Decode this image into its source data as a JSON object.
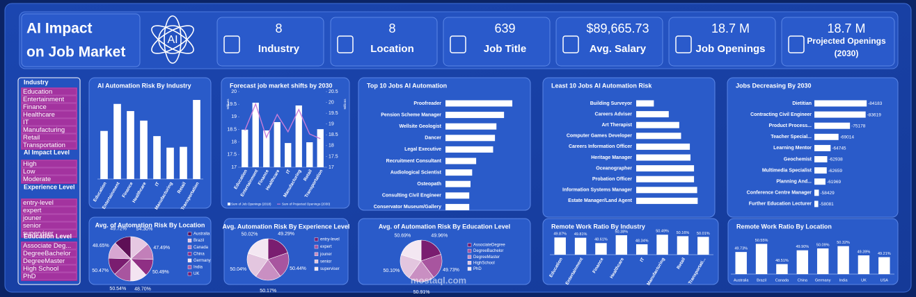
{
  "header": {
    "title_line1": "AI Impact",
    "title_line2": "on Job Market",
    "icon_text": "AI"
  },
  "kpis": [
    {
      "value": "8",
      "label": "Industry"
    },
    {
      "value": "8",
      "label": "Location"
    },
    {
      "value": "639",
      "label": "Job Title"
    },
    {
      "value": "$89,665.73",
      "label": "Avg. Salary"
    },
    {
      "value": "18.7 M",
      "label": "Job Openings"
    },
    {
      "value": "18.7 M",
      "label": "Projected Openings",
      "sublabel": "(2030)"
    }
  ],
  "slicers": [
    {
      "title": "Industry",
      "items": [
        "Education",
        "Entertainment",
        "Finance",
        "Healthcare",
        "IT",
        "Manufacturing",
        "Retail",
        "Transportation"
      ]
    },
    {
      "title": "AI Impact Level",
      "items": [
        "High",
        "Low",
        "Moderate"
      ]
    },
    {
      "title": "Experience Level",
      "items": [
        "entry-level",
        "expert",
        "jouner",
        "senior",
        "superviser"
      ]
    },
    {
      "title": "Education Level",
      "items": [
        "Associate Deg...",
        "DegreeBachelor",
        "DegreeMaster",
        "High School",
        "PhD"
      ]
    }
  ],
  "watermark": "mostaql.com",
  "chart_data": [
    {
      "type": "bar",
      "title": "AI Automation Risk By Industry",
      "categories": [
        "Education",
        "Entertainment",
        "Finance",
        "Healthcare",
        "IT",
        "Manufacturing",
        "Retail",
        "Transportation"
      ],
      "values": [
        50.01,
        50.69,
        50.51,
        50.27,
        49.88,
        49.59,
        49.61,
        50.79
      ],
      "value_labels": [
        "50.01%",
        "50.69%",
        "50.51%",
        "50.27%",
        "49.88%",
        "49.59%",
        "49.61%",
        "50.79%"
      ],
      "color": "#ffffff",
      "ylim": [
        48.8,
        51.0
      ]
    },
    {
      "type": "combo",
      "title": "Forecast job market shifts by 2030",
      "categories": [
        "Education",
        "Entertainment",
        "Finance",
        "Healthcare",
        "IT",
        "Manufacturing",
        "Retail",
        "Transportation"
      ],
      "series": [
        {
          "name": "Sum of Job Openings (2018)",
          "color": "#ffffff",
          "values": [
            18.49,
            19.56,
            18.46,
            18.79,
            17.96,
            19.45,
            17.99,
            18.51
          ]
        },
        {
          "name": "Sum of Projected Openings (2030)",
          "color": "#c77dd8",
          "axis": "y2",
          "values": [
            18.7,
            19.93,
            18.38,
            19.44,
            18.64,
            19.67,
            18.54,
            18.32
          ]
        }
      ],
      "ylabel": "Millions",
      "y2label": "Millions",
      "ylim": [
        17,
        20
      ],
      "yticks": [
        17,
        17.5,
        18,
        18.5,
        19,
        19.5,
        20
      ],
      "y2lim": [
        17,
        20.5
      ],
      "y2ticks": [
        17,
        17.5,
        18,
        18.5,
        19,
        19.5,
        20,
        20.5
      ]
    },
    {
      "type": "bar",
      "orientation": "horizontal",
      "title": "Top 10 Jobs AI Automation",
      "categories": [
        "Proofreader",
        "Pension Scheme Manager",
        "Wellsite Geologist",
        "Dancer",
        "Legal Executive",
        "Recruitment Consultant",
        "Audiological Scientist",
        "Osteopath",
        "Consulting Civil Engineer",
        "Conservator Museum/Gallery"
      ],
      "values": [
        64.36,
        63.51,
        62.73,
        62.58,
        62.39,
        60.65,
        60.24,
        60.07,
        59.94,
        59.94
      ],
      "value_labels": [
        "64.36%",
        "63.51%",
        "62.73%",
        "62.58%",
        "62.39%",
        "60.65%",
        "60.24%",
        "60.07%",
        "59.94%",
        "59.94%"
      ],
      "color": "#ffffff",
      "xlim": [
        57.5,
        65
      ]
    },
    {
      "type": "bar",
      "orientation": "horizontal",
      "title": "Least 10 Jobs AI Automation Risk",
      "categories": [
        "Building Surveyor",
        "Careers Adviser",
        "Art Therapist",
        "Computer Games Developer",
        "Careers Information Officer",
        "Heritage Manager",
        "Oceanographer",
        "Probation Officer",
        "Information Systems Manager",
        "Estate Manager/Land Agent"
      ],
      "values": [
        37.85,
        38.99,
        39.79,
        39.93,
        40.6,
        40.65,
        40.92,
        40.92,
        41.16,
        41.2
      ],
      "value_labels": [
        "37.85%",
        "38.99%",
        "39.79%",
        "39.93%",
        "40.60%",
        "40.65%",
        "40.92%",
        "40.92%",
        "41.16%",
        "41.20%"
      ],
      "color": "#ffffff",
      "xlim": [
        36.5,
        41.5
      ]
    },
    {
      "type": "bar",
      "orientation": "horizontal",
      "title": "Jobs Decreasing By 2030",
      "categories": [
        "Dietitian",
        "Contracting Civil Engineer",
        "Product Process...",
        "Teacher Special...",
        "Learning Mentor",
        "Geochemist",
        "Multimedia Specialist",
        "Planning And...",
        "Conference Centre Manager",
        "Further Education Lecturer"
      ],
      "values": [
        -84183,
        -83619,
        -75178,
        -69014,
        -64745,
        -62938,
        -62659,
        -61969,
        -58429,
        -58081
      ],
      "color": "#ffffff",
      "xlim": [
        -56000,
        -86000
      ]
    },
    {
      "type": "pie",
      "title": "Avg. of Automation Risk By Location",
      "categories": [
        "Australia",
        "Brazil",
        "Canada",
        "China",
        "Germany",
        "India",
        "UK",
        null
      ],
      "values": [
        49.72,
        54.3,
        47.49,
        50.49,
        48.7,
        50.54,
        50.47,
        48.65
      ],
      "value_labels": [
        "49.72%",
        "54.30%",
        "47.49%",
        "50.49%",
        "48.70%",
        "50.54%",
        "50.47%",
        "48.65%"
      ],
      "colors": [
        "#5e0f56",
        "#e6c8e2",
        "#c27fb9",
        "#8f2f84",
        "#f3e4f1",
        "#a8559f",
        "#7a1d70",
        "#d7a6d1"
      ]
    },
    {
      "type": "pie",
      "title": "Avg. Automation Risk By Experience Level",
      "categories": [
        "entry-level",
        "expert",
        "jouner",
        "senior",
        "superviser"
      ],
      "values": [
        49.29,
        50.44,
        50.17,
        50.04,
        50.02
      ],
      "value_labels": [
        "49.29%",
        "50.44%",
        "50.17%",
        "50.04%",
        "50.02%"
      ],
      "colors": [
        "#7a1d70",
        "#a8559f",
        "#c98fc2",
        "#e3c6df",
        "#f3e7f2"
      ]
    },
    {
      "type": "pie",
      "title": "Avg. of Automation Risk By Education Level",
      "categories": [
        "AssociateDegree",
        "DegreeBachelor",
        "DegreeMaster",
        "HighSchool",
        "PhD"
      ],
      "values": [
        49.96,
        49.73,
        50.91,
        50.1,
        50.69
      ],
      "value_labels": [
        "49.96%",
        "49.73%",
        "50.91%",
        "50.10%",
        "50.69%"
      ],
      "colors": [
        "#7a1d70",
        "#a8559f",
        "#c98fc2",
        "#e3c6df",
        "#f3e7f2"
      ]
    },
    {
      "type": "bar",
      "title": "Remote Work Ratio By Industry",
      "categories": [
        "Education",
        "Entertainment",
        "Finance",
        "Healthcare",
        "IT",
        "Manufacturing",
        "Retail",
        "Transportati..."
      ],
      "values": [
        49.87,
        49.81,
        48.61,
        50.38,
        48.34,
        50.49,
        50.16,
        50.01
      ],
      "value_labels": [
        "49.87%",
        "49.81%",
        "48.61%",
        "50.38%",
        "48.34%",
        "50.49%",
        "50.16%",
        "50.01%"
      ],
      "color": "#ffffff",
      "ylim": [
        46,
        51
      ]
    },
    {
      "type": "bar",
      "title": "Remote Work Ratio By Location",
      "categories": [
        "Australia",
        "Brazil",
        "Canada",
        "China",
        "Germany",
        "India",
        "UK",
        "USA"
      ],
      "values": [
        49.73,
        50.55,
        48.51,
        49.9,
        50.09,
        50.32,
        49.39,
        49.21
      ],
      "value_labels": [
        "49.73%",
        "50.55%",
        "48.51%",
        "49.90%",
        "50.09%",
        "50.32%",
        "49.39%",
        "49.21%"
      ],
      "color": "#ffffff",
      "ylim": [
        47.5,
        51
      ]
    }
  ]
}
